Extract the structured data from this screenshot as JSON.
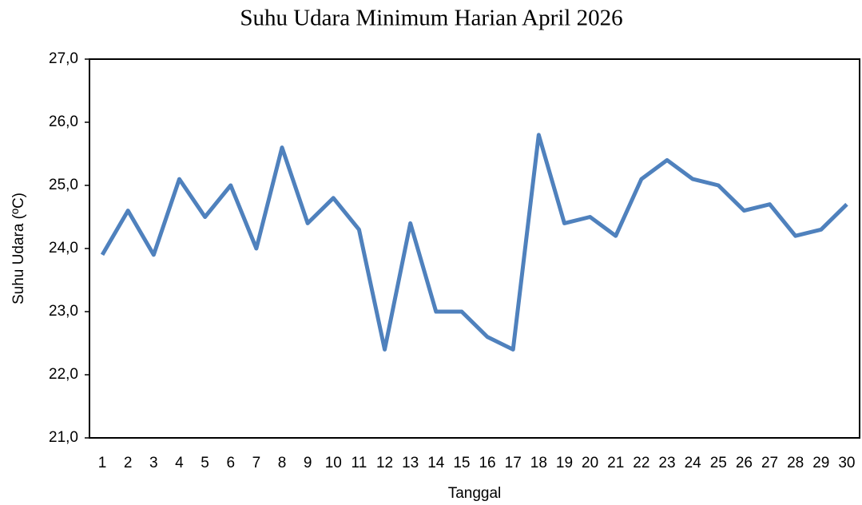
{
  "chart_data": {
    "type": "line",
    "title": "Suhu Udara Minimum Harian April 2026",
    "x_label": "Tanggal",
    "y_label": "Suhu Udara (ºC)",
    "categories": [
      "1",
      "2",
      "3",
      "4",
      "5",
      "6",
      "7",
      "8",
      "9",
      "10",
      "11",
      "12",
      "13",
      "14",
      "15",
      "16",
      "17",
      "18",
      "19",
      "20",
      "21",
      "22",
      "23",
      "24",
      "25",
      "26",
      "27",
      "28",
      "29",
      "30"
    ],
    "series": [
      {
        "name": "Suhu Udara Minimum",
        "color": "#4f81bd",
        "values": [
          23.9,
          24.6,
          23.9,
          25.1,
          24.5,
          25.0,
          24.0,
          25.6,
          24.4,
          24.8,
          24.3,
          22.4,
          24.4,
          23.0,
          23.0,
          22.6,
          22.4,
          25.8,
          24.4,
          24.5,
          24.2,
          25.1,
          25.4,
          25.1,
          25.0,
          24.6,
          24.7,
          24.2,
          24.3,
          24.7
        ]
      }
    ],
    "ylim": [
      21,
      27
    ],
    "yticks": [
      {
        "value": 21,
        "label": "21,0"
      },
      {
        "value": 22,
        "label": "22,0"
      },
      {
        "value": 23,
        "label": "23,0"
      },
      {
        "value": 24,
        "label": "24,0"
      },
      {
        "value": 25,
        "label": "25,0"
      },
      {
        "value": 26,
        "label": "26,0"
      },
      {
        "value": 27,
        "label": "27,0"
      }
    ],
    "grid": false
  }
}
